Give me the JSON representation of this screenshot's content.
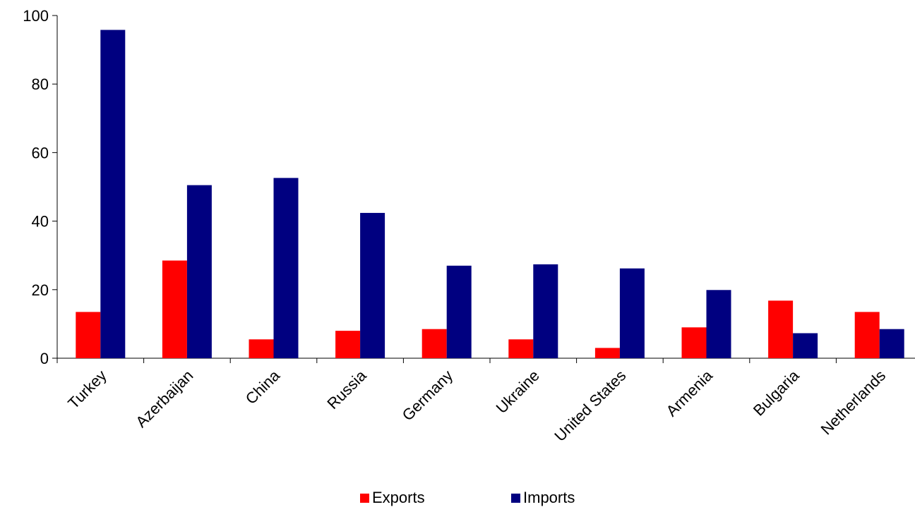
{
  "chart_data": {
    "type": "bar",
    "categories": [
      "Turkey",
      "Azerbaijan",
      "China",
      "Russia",
      "Germany",
      "Ukraine",
      "United States",
      "Armenia",
      "Bulgaria",
      "Netherlands"
    ],
    "series": [
      {
        "name": "Exports",
        "color": "#ff0000",
        "values": [
          13.5,
          28.5,
          5.5,
          8.0,
          8.5,
          5.5,
          3.0,
          9.0,
          16.8,
          13.5
        ]
      },
      {
        "name": "Imports",
        "color": "#000080",
        "values": [
          95.8,
          50.5,
          52.6,
          42.4,
          27.0,
          27.4,
          26.2,
          19.9,
          7.3,
          8.5
        ]
      }
    ],
    "ylim": [
      0,
      100
    ],
    "yticks": [
      0,
      20,
      40,
      60,
      80,
      100
    ],
    "grid": false,
    "legend_position": "bottom"
  }
}
